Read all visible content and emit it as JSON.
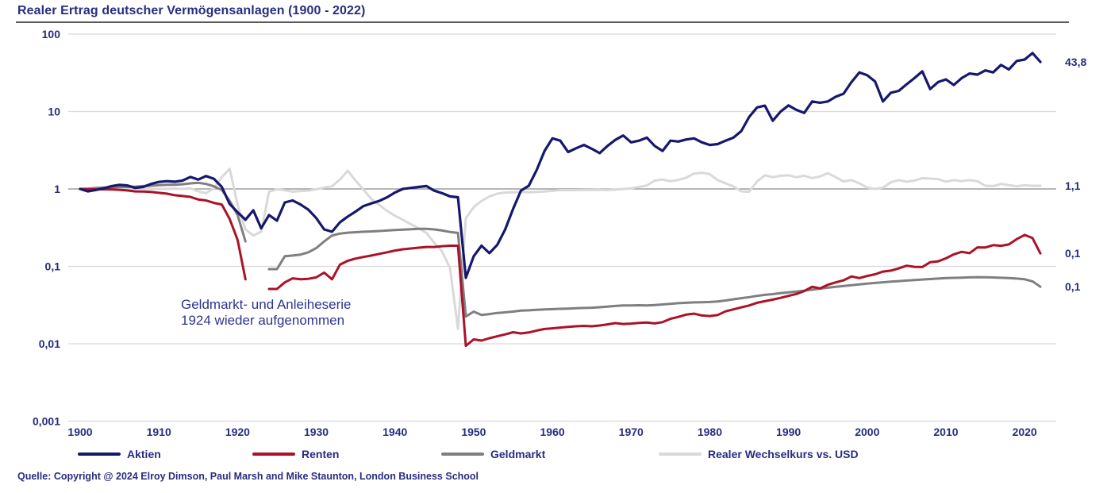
{
  "title": "Realer Ertrag deutscher Vermögensanlagen (1900 - 2022)",
  "source": "Quelle: Copyright @ 2024 Elroy Dimson, Paul Marsh and Mike Staunton, London Business School",
  "annotation": {
    "line1": "Geldmarkt- und Anleiheserie",
    "line2": "1924 wieder aufgenommen"
  },
  "colors": {
    "text_navy": "#272d80",
    "grid_major": "#8a8a8a",
    "grid_minor": "#d9d9d9",
    "title_rule": "#5a5a5c"
  },
  "chart_data": {
    "type": "line",
    "y_scale": "log",
    "grid": "horizontal-only",
    "legend_position": "bottom",
    "xlim": [
      1900,
      2022
    ],
    "ylim": [
      0.001,
      100
    ],
    "y_ticks": [
      {
        "value": 100,
        "label": "100"
      },
      {
        "value": 10,
        "label": "10"
      },
      {
        "value": 1,
        "label": "1"
      },
      {
        "value": 0.1,
        "label": "0,1"
      },
      {
        "value": 0.01,
        "label": "0,01"
      },
      {
        "value": 0.001,
        "label": "0,001"
      }
    ],
    "x_ticks": [
      {
        "value": 1900,
        "label": "1900"
      },
      {
        "value": 1910,
        "label": "1910"
      },
      {
        "value": 1920,
        "label": "1920"
      },
      {
        "value": 1930,
        "label": "1930"
      },
      {
        "value": 1940,
        "label": "1940"
      },
      {
        "value": 1950,
        "label": "1950"
      },
      {
        "value": 1960,
        "label": "1960"
      },
      {
        "value": 1970,
        "label": "1970"
      },
      {
        "value": 1980,
        "label": "1980"
      },
      {
        "value": 1990,
        "label": "1990"
      },
      {
        "value": 2000,
        "label": "2000"
      },
      {
        "value": 2010,
        "label": "2010"
      },
      {
        "value": 2020,
        "label": "2020"
      }
    ],
    "years": [
      1900,
      1901,
      1902,
      1903,
      1904,
      1905,
      1906,
      1907,
      1908,
      1909,
      1910,
      1911,
      1912,
      1913,
      1914,
      1915,
      1916,
      1917,
      1918,
      1919,
      1920,
      1921,
      1922,
      1923,
      1924,
      1925,
      1926,
      1927,
      1928,
      1929,
      1930,
      1931,
      1932,
      1933,
      1934,
      1935,
      1936,
      1937,
      1938,
      1939,
      1940,
      1941,
      1942,
      1943,
      1944,
      1945,
      1946,
      1947,
      1948,
      1949,
      1950,
      1951,
      1952,
      1953,
      1954,
      1955,
      1956,
      1957,
      1958,
      1959,
      1960,
      1961,
      1962,
      1963,
      1964,
      1965,
      1966,
      1967,
      1968,
      1969,
      1970,
      1971,
      1972,
      1973,
      1974,
      1975,
      1976,
      1977,
      1978,
      1979,
      1980,
      1981,
      1982,
      1983,
      1984,
      1985,
      1986,
      1987,
      1988,
      1989,
      1990,
      1991,
      1992,
      1993,
      1994,
      1995,
      1996,
      1997,
      1998,
      1999,
      2000,
      2001,
      2002,
      2003,
      2004,
      2005,
      2006,
      2007,
      2008,
      2009,
      2010,
      2011,
      2012,
      2013,
      2014,
      2015,
      2016,
      2017,
      2018,
      2019,
      2020,
      2021,
      2022
    ],
    "series": [
      {
        "name": "Aktien",
        "color": "#15186c",
        "end_label": "43,8",
        "end_value": 43.8,
        "values": [
          1.0,
          0.93,
          0.97,
          1.02,
          1.09,
          1.13,
          1.11,
          1.03,
          1.06,
          1.16,
          1.23,
          1.26,
          1.24,
          1.28,
          1.43,
          1.32,
          1.47,
          1.35,
          1.06,
          0.64,
          0.5,
          0.4,
          0.53,
          0.31,
          0.46,
          0.39,
          0.67,
          0.71,
          0.63,
          0.54,
          0.42,
          0.3,
          0.28,
          0.37,
          0.44,
          0.51,
          0.6,
          0.65,
          0.7,
          0.78,
          0.9,
          1.0,
          1.03,
          1.06,
          1.09,
          0.95,
          0.88,
          0.8,
          0.78,
          0.071,
          0.135,
          0.185,
          0.148,
          0.19,
          0.3,
          0.55,
          0.95,
          1.1,
          1.75,
          3.1,
          4.5,
          4.2,
          3.0,
          3.35,
          3.7,
          3.3,
          2.9,
          3.6,
          4.3,
          4.9,
          4.0,
          4.2,
          4.6,
          3.6,
          3.1,
          4.2,
          4.1,
          4.35,
          4.5,
          4.0,
          3.7,
          3.8,
          4.2,
          4.6,
          5.6,
          8.5,
          11.3,
          11.9,
          7.6,
          10.0,
          12.0,
          10.5,
          9.6,
          13.5,
          13.0,
          13.5,
          15.5,
          17.0,
          24.0,
          32.0,
          29.5,
          24.5,
          13.5,
          17.5,
          18.5,
          22.5,
          27.0,
          33.0,
          19.5,
          24.0,
          26.0,
          22.0,
          27.0,
          31.0,
          30.0,
          34.0,
          32.0,
          40.0,
          35.0,
          45.0,
          47.0,
          57.0,
          43.8
        ]
      },
      {
        "name": "Renten",
        "color": "#ab1228",
        "end_label": "0,1",
        "end_value": 0.147,
        "values": [
          1.0,
          0.99,
          0.985,
          0.99,
          0.985,
          0.975,
          0.955,
          0.93,
          0.925,
          0.915,
          0.89,
          0.87,
          0.83,
          0.81,
          0.79,
          0.73,
          0.71,
          0.66,
          0.63,
          0.41,
          0.22,
          0.068,
          null,
          null,
          0.051,
          0.051,
          0.062,
          0.07,
          0.068,
          0.069,
          0.072,
          0.083,
          0.068,
          0.105,
          0.118,
          0.126,
          0.132,
          0.138,
          0.145,
          0.152,
          0.16,
          0.166,
          0.17,
          0.174,
          0.178,
          0.178,
          0.182,
          0.185,
          0.185,
          0.0094,
          0.0114,
          0.011,
          0.0118,
          0.0125,
          0.0132,
          0.0141,
          0.0136,
          0.014,
          0.0148,
          0.0155,
          0.0158,
          0.0162,
          0.0165,
          0.0168,
          0.017,
          0.0168,
          0.0172,
          0.0178,
          0.0185,
          0.018,
          0.0182,
          0.0186,
          0.0188,
          0.0183,
          0.019,
          0.021,
          0.0222,
          0.0238,
          0.0245,
          0.0232,
          0.0228,
          0.0235,
          0.0262,
          0.0278,
          0.0295,
          0.0312,
          0.0338,
          0.0355,
          0.0372,
          0.0392,
          0.0415,
          0.044,
          0.048,
          0.0545,
          0.052,
          0.0578,
          0.062,
          0.066,
          0.074,
          0.0705,
          0.0752,
          0.079,
          0.0855,
          0.088,
          0.094,
          0.102,
          0.0985,
          0.098,
          0.113,
          0.116,
          0.127,
          0.143,
          0.154,
          0.148,
          0.176,
          0.175,
          0.188,
          0.1845,
          0.192,
          0.225,
          0.255,
          0.232,
          0.147
        ]
      },
      {
        "name": "Geldmarkt",
        "color": "#7f7f7f",
        "end_label": "0,1",
        "end_value": 0.055,
        "values": [
          1.0,
          1.01,
          1.03,
          1.04,
          1.05,
          1.06,
          1.06,
          1.07,
          1.09,
          1.1,
          1.12,
          1.13,
          1.13,
          1.15,
          1.18,
          1.2,
          1.16,
          1.08,
          0.97,
          0.7,
          0.46,
          0.21,
          null,
          null,
          0.092,
          0.092,
          0.135,
          0.138,
          0.142,
          0.152,
          0.172,
          0.21,
          0.25,
          0.265,
          0.272,
          0.276,
          0.28,
          0.283,
          0.286,
          0.29,
          0.294,
          0.298,
          0.302,
          0.305,
          0.305,
          0.3,
          0.29,
          0.278,
          0.27,
          0.0225,
          0.026,
          0.0235,
          0.0242,
          0.025,
          0.0255,
          0.026,
          0.0268,
          0.027,
          0.0274,
          0.0278,
          0.028,
          0.0283,
          0.0285,
          0.0288,
          0.029,
          0.0292,
          0.0296,
          0.0302,
          0.0308,
          0.0312,
          0.0313,
          0.0314,
          0.0313,
          0.0316,
          0.0322,
          0.0328,
          0.0334,
          0.0338,
          0.0342,
          0.0344,
          0.0346,
          0.0352,
          0.0362,
          0.0375,
          0.0388,
          0.04,
          0.0415,
          0.0428,
          0.0438,
          0.045,
          0.0462,
          0.0472,
          0.0486,
          0.05,
          0.0515,
          0.053,
          0.0545,
          0.0558,
          0.0572,
          0.0585,
          0.0598,
          0.061,
          0.0622,
          0.0634,
          0.0645,
          0.0655,
          0.0665,
          0.0675,
          0.0685,
          0.0695,
          0.0705,
          0.071,
          0.0715,
          0.072,
          0.0725,
          0.0722,
          0.0718,
          0.0712,
          0.0705,
          0.0695,
          0.068,
          0.064,
          0.0545
        ]
      },
      {
        "name": "Realer Wechselkurs vs. USD",
        "color": "#d9d9d9",
        "end_label": "1,1",
        "end_value": 1.1,
        "values": [
          1.0,
          1.0,
          1.01,
          1.0,
          1.0,
          1.01,
          1.0,
          1.0,
          1.01,
          1.0,
          1.0,
          1.0,
          1.01,
          1.0,
          1.02,
          0.93,
          0.88,
          1.02,
          1.42,
          1.82,
          0.62,
          0.3,
          0.25,
          0.28,
          0.92,
          0.99,
          0.96,
          0.92,
          0.94,
          0.95,
          0.99,
          1.04,
          1.08,
          1.32,
          1.72,
          1.28,
          0.98,
          0.74,
          0.62,
          0.52,
          0.45,
          0.4,
          0.35,
          0.31,
          0.27,
          0.2,
          0.155,
          0.095,
          0.0155,
          0.42,
          0.58,
          0.7,
          0.8,
          0.87,
          0.9,
          0.905,
          0.915,
          0.905,
          0.915,
          0.925,
          0.945,
          0.965,
          0.965,
          0.965,
          0.968,
          0.972,
          0.975,
          0.968,
          0.978,
          1.0,
          1.02,
          1.06,
          1.11,
          1.28,
          1.32,
          1.26,
          1.31,
          1.4,
          1.58,
          1.62,
          1.55,
          1.3,
          1.18,
          1.08,
          0.93,
          0.92,
          1.25,
          1.5,
          1.42,
          1.48,
          1.5,
          1.42,
          1.48,
          1.38,
          1.45,
          1.6,
          1.42,
          1.25,
          1.3,
          1.18,
          1.04,
          1.0,
          1.04,
          1.22,
          1.3,
          1.24,
          1.28,
          1.38,
          1.36,
          1.34,
          1.24,
          1.3,
          1.26,
          1.3,
          1.26,
          1.1,
          1.09,
          1.16,
          1.12,
          1.08,
          1.12,
          1.1,
          1.1
        ]
      }
    ]
  }
}
